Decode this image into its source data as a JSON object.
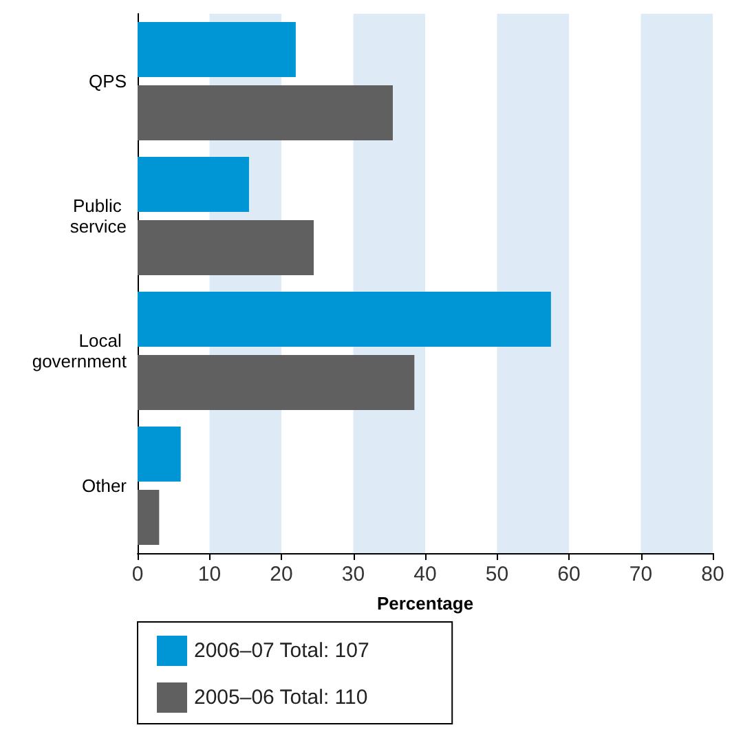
{
  "chart_data": {
    "type": "bar",
    "orientation": "horizontal",
    "xlabel": "Percentage",
    "categories": [
      "QPS",
      "Public service",
      "Local government",
      "Other"
    ],
    "series": [
      {
        "name": "2006–07 Total: 107",
        "color": "#0096d6",
        "values": [
          22,
          15.5,
          57.5,
          6
        ]
      },
      {
        "name": "2005–06 Total: 110",
        "color": "#606060",
        "values": [
          35.5,
          24.5,
          38.5,
          3
        ]
      }
    ],
    "xlim": [
      0,
      80
    ],
    "xticks": [
      0,
      10,
      20,
      30,
      40,
      50,
      60,
      70,
      80
    ],
    "bands": [
      {
        "axis": "x",
        "from": 10,
        "to": 20,
        "color": "#deebf7"
      },
      {
        "axis": "x",
        "from": 30,
        "to": 40,
        "color": "#deebf7"
      },
      {
        "axis": "x",
        "from": 50,
        "to": 60,
        "color": "#deebf7"
      },
      {
        "axis": "x",
        "from": 70,
        "to": 80,
        "color": "#deebf7"
      }
    ],
    "grid": false,
    "legend": "bottom"
  }
}
